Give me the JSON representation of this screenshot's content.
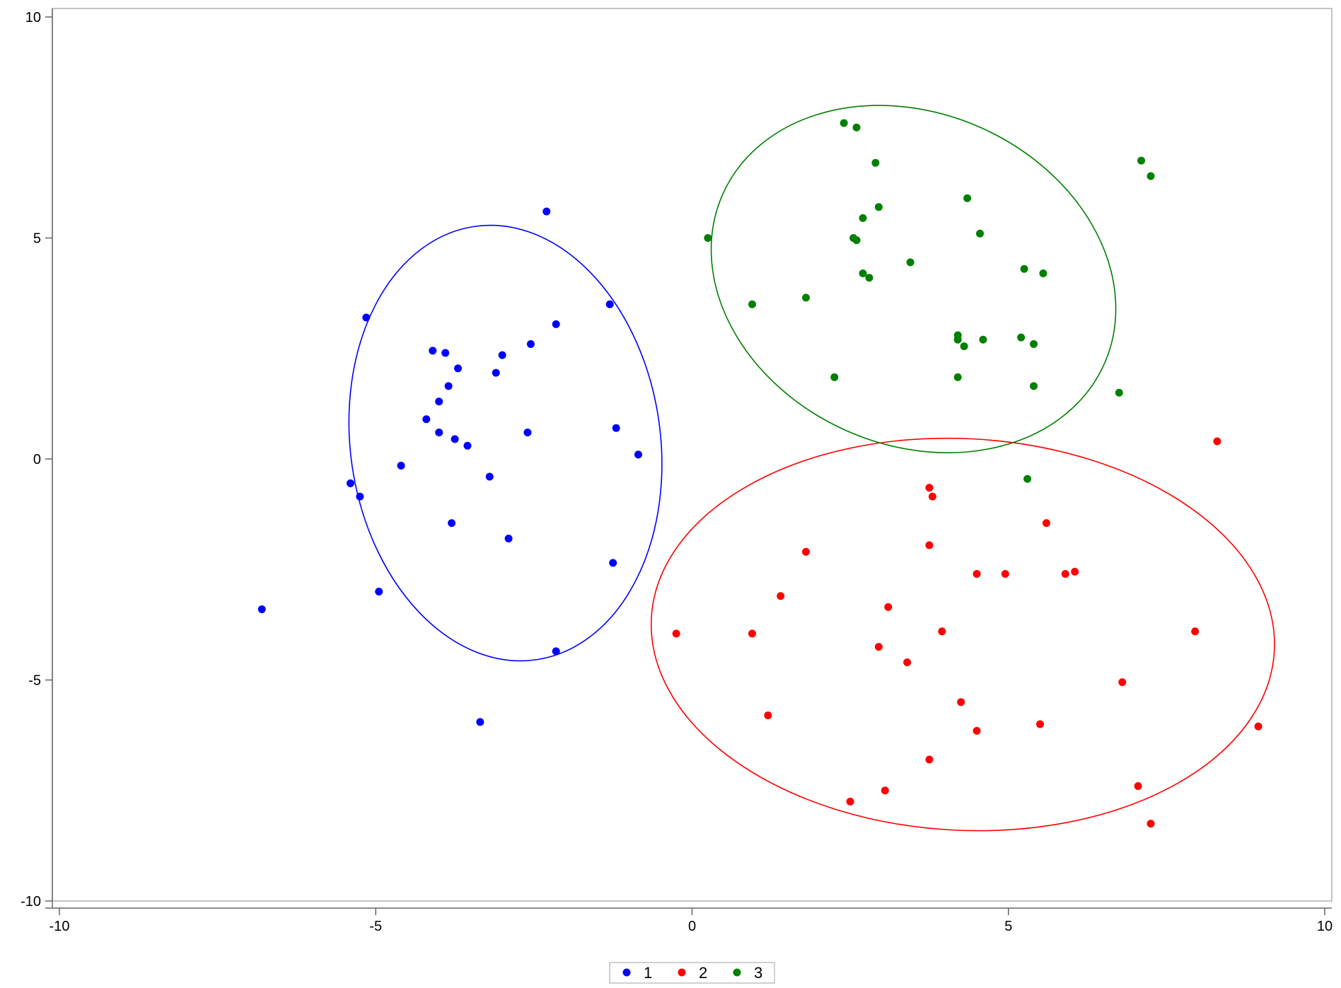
{
  "chart_data": {
    "type": "scatter",
    "title": "",
    "xlabel": "",
    "ylabel": "",
    "xlim": [
      -10,
      10
    ],
    "ylim": [
      -10,
      10
    ],
    "x_ticks": [
      -10,
      -5,
      0,
      5,
      10
    ],
    "y_ticks": [
      -10,
      -5,
      0,
      5,
      10
    ],
    "x_tick_labels": [
      "-10",
      "-5",
      "0",
      "5",
      "10"
    ],
    "y_tick_labels": [
      "-10",
      "-5",
      "0",
      "5",
      "10"
    ],
    "grid": false,
    "legend_position": "bottom-center",
    "series": [
      {
        "name": "1",
        "color": "#0000ff",
        "points": [
          [
            -6.8,
            -3.4
          ],
          [
            -5.15,
            3.2
          ],
          [
            -5.4,
            -0.55
          ],
          [
            -5.25,
            -0.85
          ],
          [
            -4.95,
            -3.0
          ],
          [
            -4.6,
            -0.15
          ],
          [
            -4.2,
            0.9
          ],
          [
            -4.1,
            2.45
          ],
          [
            -4.0,
            0.6
          ],
          [
            -4.0,
            1.3
          ],
          [
            -3.9,
            2.4
          ],
          [
            -3.85,
            1.65
          ],
          [
            -3.8,
            -1.45
          ],
          [
            -3.75,
            0.45
          ],
          [
            -3.7,
            2.05
          ],
          [
            -3.55,
            0.3
          ],
          [
            -3.2,
            -0.4
          ],
          [
            -3.1,
            1.95
          ],
          [
            -3.0,
            2.35
          ],
          [
            -2.9,
            -1.8
          ],
          [
            -2.6,
            0.6
          ],
          [
            -2.55,
            2.6
          ],
          [
            -2.3,
            5.6
          ],
          [
            -2.15,
            3.05
          ],
          [
            -2.15,
            -4.35
          ],
          [
            -1.3,
            3.5
          ],
          [
            -1.25,
            -2.35
          ],
          [
            -1.2,
            0.7
          ],
          [
            -0.85,
            0.1
          ],
          [
            -3.35,
            -5.95
          ]
        ]
      },
      {
        "name": "2",
        "color": "#ff0000",
        "points": [
          [
            -0.25,
            -3.95
          ],
          [
            0.95,
            -3.95
          ],
          [
            1.2,
            -5.8
          ],
          [
            1.4,
            -3.1
          ],
          [
            1.8,
            -2.1
          ],
          [
            2.5,
            -7.75
          ],
          [
            2.95,
            -4.25
          ],
          [
            3.05,
            -7.5
          ],
          [
            3.1,
            -3.35
          ],
          [
            3.4,
            -4.6
          ],
          [
            3.75,
            -0.65
          ],
          [
            3.8,
            -0.85
          ],
          [
            3.75,
            -1.95
          ],
          [
            3.95,
            -3.9
          ],
          [
            3.75,
            -6.8
          ],
          [
            4.25,
            -5.5
          ],
          [
            4.5,
            -2.6
          ],
          [
            4.5,
            -6.15
          ],
          [
            4.95,
            -2.6
          ],
          [
            5.5,
            -6.0
          ],
          [
            5.6,
            -1.45
          ],
          [
            5.9,
            -2.6
          ],
          [
            6.05,
            -2.55
          ],
          [
            6.8,
            -5.05
          ],
          [
            7.05,
            -7.4
          ],
          [
            7.25,
            -8.25
          ],
          [
            7.95,
            -3.9
          ],
          [
            8.3,
            0.4
          ],
          [
            8.95,
            -6.05
          ]
        ]
      },
      {
        "name": "3",
        "color": "#008000",
        "points": [
          [
            0.25,
            5.0
          ],
          [
            0.95,
            3.5
          ],
          [
            1.8,
            3.65
          ],
          [
            2.25,
            1.85
          ],
          [
            2.4,
            7.6
          ],
          [
            2.6,
            7.5
          ],
          [
            2.55,
            5.0
          ],
          [
            2.6,
            4.95
          ],
          [
            2.7,
            5.45
          ],
          [
            2.7,
            4.2
          ],
          [
            2.8,
            4.1
          ],
          [
            2.9,
            6.7
          ],
          [
            2.95,
            5.7
          ],
          [
            3.45,
            4.45
          ],
          [
            4.2,
            2.8
          ],
          [
            4.2,
            2.7
          ],
          [
            4.2,
            1.85
          ],
          [
            4.3,
            2.55
          ],
          [
            4.35,
            5.9
          ],
          [
            4.55,
            5.1
          ],
          [
            4.6,
            2.7
          ],
          [
            5.2,
            2.75
          ],
          [
            5.25,
            4.3
          ],
          [
            5.3,
            -0.45
          ],
          [
            5.4,
            2.6
          ],
          [
            5.4,
            1.65
          ],
          [
            5.55,
            4.2
          ],
          [
            6.75,
            1.5
          ],
          [
            7.1,
            6.75
          ],
          [
            7.25,
            6.4
          ]
        ]
      }
    ],
    "ellipses": [
      {
        "series": "1",
        "color": "#0000ff",
        "center": [
          -2.95,
          0.36
        ],
        "rx": 2.45,
        "ry": 4.95,
        "angle_deg": 8
      },
      {
        "series": "2",
        "color": "#ff0000",
        "center": [
          4.28,
          -3.97
        ],
        "rx": 4.93,
        "ry": 4.43,
        "angle_deg": -3
      },
      {
        "series": "3",
        "color": "#008000",
        "center": [
          3.5,
          4.07
        ],
        "rx": 3.3,
        "ry": 3.75,
        "angle_deg": -24
      }
    ]
  },
  "legend": {
    "items": [
      {
        "label": "1",
        "color": "#0000ff"
      },
      {
        "label": "2",
        "color": "#ff0000"
      },
      {
        "label": "3",
        "color": "#008000"
      }
    ]
  }
}
